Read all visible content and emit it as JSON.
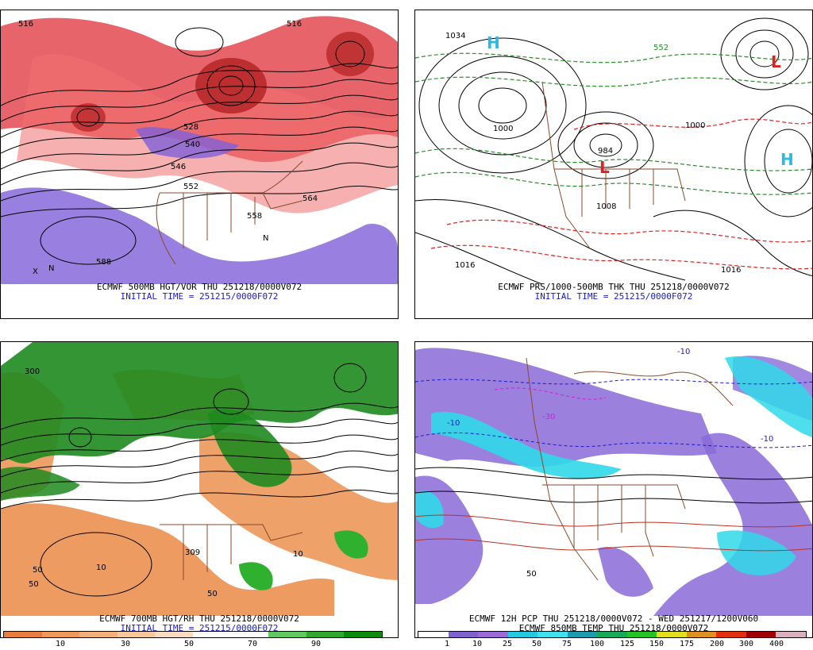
{
  "panels": [
    {
      "id": "tl",
      "caption_line1": "ECMWF 500MB HGT/VOR THU 251218/0000V072",
      "caption_line2": "INITIAL TIME = 251215/0000F072",
      "labels": [
        "516",
        "516",
        "528",
        "540",
        "546",
        "552",
        "558",
        "564",
        "588",
        "N",
        "N",
        "X"
      ]
    },
    {
      "id": "tr",
      "caption_line1": "ECMWF PRS/1000-500MB THK THU 251218/0000V072",
      "caption_line2": "INITIAL TIME = 251215/0000F072",
      "labels": [
        "1034",
        "1000",
        "1000",
        "1008",
        "1016",
        "1016",
        "984",
        "552",
        "L",
        "L",
        "H",
        "H"
      ]
    },
    {
      "id": "bl",
      "caption_line1": "ECMWF 700MB HGT/RH THU 251218/0000V072",
      "caption_line2": "INITIAL TIME = 251215/0000F072",
      "labels": [
        "10",
        "50",
        "50",
        "50",
        "10",
        "309",
        "300"
      ]
    },
    {
      "id": "br",
      "caption_line1": "ECMWF 12H PCP THU 251218/0000V072 - WED 251217/1200V060",
      "caption_line2": "ECMWF 850MB TEMP THU 251218/0000V072",
      "labels": [
        "-10",
        "-10",
        "-30",
        "50",
        "-10"
      ]
    }
  ],
  "rh_colorbar": {
    "tick_labels": [
      "10",
      "30",
      "50",
      "70",
      "90"
    ],
    "colors": [
      "#e87d40",
      "#ef9a5a",
      "#f4b07a",
      "#f8c79c",
      "#fbdcc0",
      "#ffffff",
      "#ffffff",
      "#5fc85f",
      "#2fa82f",
      "#0b8a0b"
    ]
  },
  "pcp_colorbar": {
    "tick_labels": [
      "1",
      "10",
      "25",
      "50",
      "75",
      "100",
      "125",
      "150",
      "175",
      "200",
      "300",
      "400"
    ],
    "colors": [
      "#ffffff",
      "#7f62cf",
      "#9a6bd8",
      "#22c9e0",
      "#3fe2ee",
      "#1f9bb0",
      "#1aa85a",
      "#26c226",
      "#e0e020",
      "#e09020",
      "#e03010",
      "#a00000",
      "#d8b0c0"
    ]
  },
  "colors": {
    "vort_red": "#e0303a",
    "vort_purple": "#8060d8",
    "rh_green": "#1e8a1e",
    "rh_orange": "#ec9050",
    "thickness_red": "#e02020",
    "thickness_green": "#2a8a2a",
    "border_brown": "#8a4a2a",
    "pcp_purple": "#8a6ad8",
    "pcp_cyan": "#30d8e8"
  }
}
